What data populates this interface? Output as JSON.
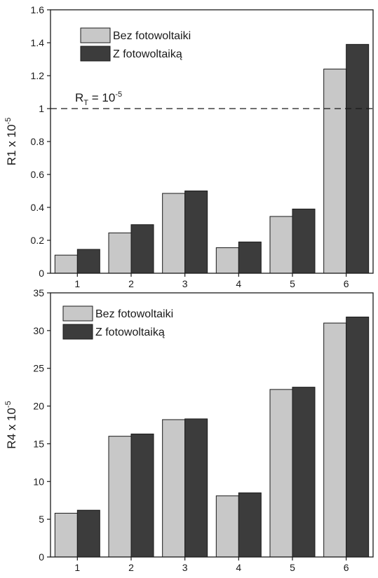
{
  "colors": {
    "series_light": "#c8c8c8",
    "series_dark": "#3c3c3c",
    "axis": "#1a1a1a",
    "bar_stroke": "#1a1a1a",
    "background": "#ffffff"
  },
  "chart_data": [
    {
      "type": "bar",
      "categories": [
        "1",
        "2",
        "3",
        "4",
        "5",
        "6"
      ],
      "series": [
        {
          "name": "Bez fotowoltaiki",
          "values": [
            0.11,
            0.245,
            0.485,
            0.155,
            0.345,
            1.24
          ]
        },
        {
          "name": "Z fotowoltaiką",
          "values": [
            0.145,
            0.295,
            0.5,
            0.19,
            0.39,
            1.39
          ]
        }
      ],
      "title": "",
      "xlabel": "",
      "ylabel_main": "R1 x 10",
      "ylabel_exp": "-5",
      "ylim": [
        0,
        1.6
      ],
      "yticks": [
        "0",
        "0.2",
        "0.4",
        "0.6",
        "0.8",
        "1",
        "1.2",
        "1.4",
        "1.6"
      ],
      "reference_line": {
        "value": 1,
        "label_main": "R",
        "label_sub": "T",
        "label_mid": " = 10",
        "label_exp": "-5"
      },
      "grid": false,
      "legend_position": "top-left"
    },
    {
      "type": "bar",
      "categories": [
        "1",
        "2",
        "3",
        "4",
        "5",
        "6"
      ],
      "series": [
        {
          "name": "Bez fotowoltaiki",
          "values": [
            5.8,
            16.0,
            18.2,
            8.1,
            22.2,
            31.0
          ]
        },
        {
          "name": "Z fotowoltaiką",
          "values": [
            6.2,
            16.3,
            18.3,
            8.5,
            22.5,
            31.8
          ]
        }
      ],
      "title": "",
      "xlabel": "",
      "ylabel_main": "R4 x 10",
      "ylabel_exp": "-5",
      "ylim": [
        0,
        35
      ],
      "yticks": [
        "0",
        "5",
        "10",
        "15",
        "20",
        "25",
        "30",
        "35"
      ],
      "grid": false,
      "legend_position": "top-left"
    }
  ]
}
